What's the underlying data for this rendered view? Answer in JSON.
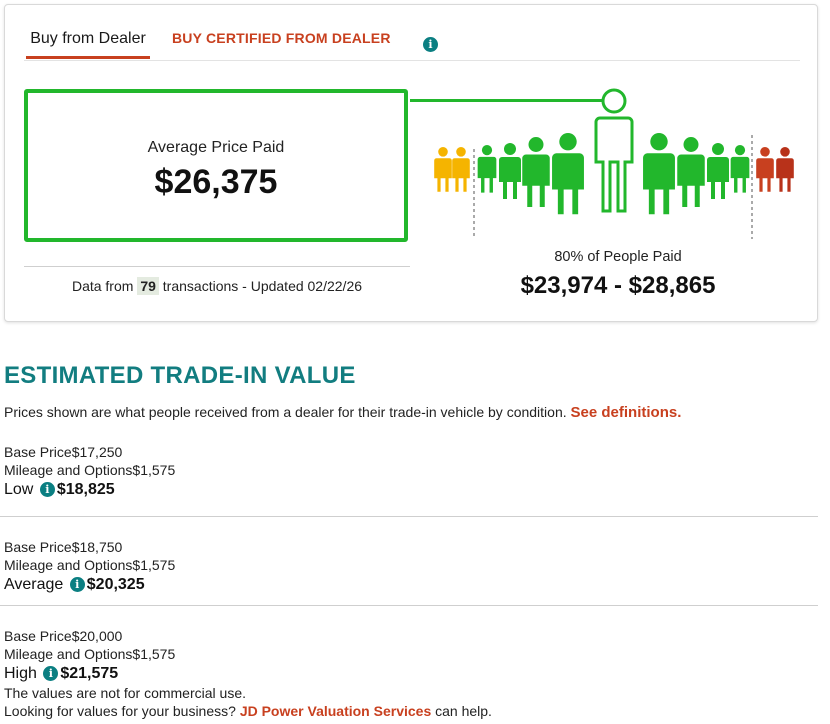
{
  "tabs": {
    "buy_dealer": "Buy from Dealer",
    "buy_certified": "BUY CERTIFIED FROM DEALER"
  },
  "average": {
    "label": "Average Price Paid",
    "value": "$26,375"
  },
  "transactions": {
    "prefix": "Data from",
    "count": "79",
    "suffix": "transactions - Updated 02/22/26"
  },
  "range": {
    "label": "80% of People Paid",
    "value": "$23,974 - $28,865"
  },
  "colors": {
    "accent": "#c8401f",
    "green": "#22b72c",
    "teal": "#127d80",
    "yellow": "#f5b400",
    "red": "#b8321a"
  },
  "trade_in": {
    "title": "ESTIMATED TRADE-IN VALUE",
    "description": "Prices shown are what people received from a dealer for their trade-in vehicle by condition.",
    "see_link": "See definitions.",
    "conditions": [
      {
        "base_label": "Base Price",
        "base": "$17,250",
        "mileage_label": "Mileage and Options",
        "mileage": "$1,575",
        "name": "Low",
        "total": "$18,825"
      },
      {
        "base_label": "Base Price",
        "base": "$18,750",
        "mileage_label": "Mileage and Options",
        "mileage": "$1,575",
        "name": "Average",
        "total": "$20,325"
      },
      {
        "base_label": "Base Price",
        "base": "$20,000",
        "mileage_label": "Mileage and Options",
        "mileage": "$1,575",
        "name": "High",
        "total": "$21,575"
      }
    ],
    "disclaimer": "The values are not for commercial use.",
    "business_prefix": "Looking for values for your business?",
    "business_link": "JD Power Valuation Services",
    "business_suffix": "can help."
  }
}
